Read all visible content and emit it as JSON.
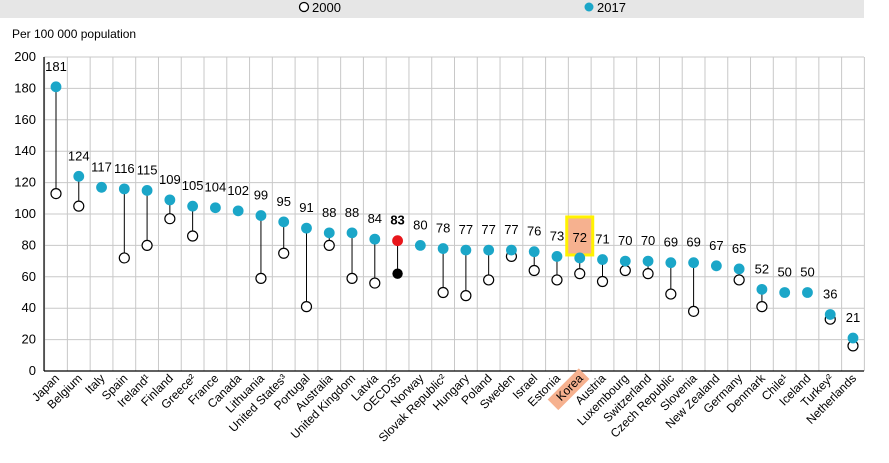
{
  "legend": {
    "label_2000": "2000",
    "label_2017": "2017"
  },
  "colors": {
    "series_2017": "#1ba6c8",
    "series_2000_fill": "#ffffff",
    "series_2000_stroke": "#000000",
    "oecd_2017": "#e8161b",
    "oecd_2000": "#000000",
    "highlight_box": "#fff200",
    "highlight_fill": "#f6b18f",
    "grid": "#c8c8c8",
    "connector": "#000000"
  },
  "chart_data": {
    "type": "scatter",
    "subtype": "dot-plot",
    "ylabel": "Per 100 000 population",
    "ylim": [
      0,
      200
    ],
    "yticks": [
      0,
      20,
      40,
      60,
      80,
      100,
      120,
      140,
      160,
      180,
      200
    ],
    "grid": true,
    "legend_position": "top",
    "highlight_category": "Korea",
    "average_category": "OECD35",
    "categories": [
      "Japan",
      "Belgium",
      "Italy",
      "Spain",
      "Ireland¹",
      "Finland",
      "Greece²",
      "France",
      "Canada",
      "Lithuania",
      "United States³",
      "Portugal",
      "Australia",
      "United Kingdom",
      "Latvia",
      "OECD35",
      "Norway",
      "Slovak Republic²",
      "Hungary",
      "Poland",
      "Sweden",
      "Israel",
      "Estonia",
      "Korea",
      "Austria",
      "Luxembourg",
      "Switzerland",
      "Czech Republic",
      "Slovenia",
      "New Zealand",
      "Germany",
      "Denmark",
      "Chile¹",
      "Iceland",
      "Turkey²",
      "Netherlands"
    ],
    "series": [
      {
        "name": "2017",
        "values": [
          181,
          124,
          117,
          116,
          115,
          109,
          105,
          104,
          102,
          99,
          95,
          91,
          88,
          88,
          84,
          83,
          80,
          78,
          77,
          77,
          77,
          76,
          73,
          72,
          71,
          70,
          70,
          69,
          69,
          67,
          65,
          52,
          50,
          50,
          36,
          21
        ]
      },
      {
        "name": "2000",
        "values": [
          113,
          105,
          null,
          72,
          80,
          97,
          86,
          null,
          null,
          59,
          75,
          41,
          80,
          59,
          56,
          62,
          null,
          50,
          48,
          58,
          73,
          64,
          58,
          62,
          57,
          64,
          62,
          49,
          38,
          null,
          58,
          41,
          null,
          null,
          33,
          16
        ]
      }
    ],
    "data_labels": [
      "181",
      "124",
      "117",
      "116",
      "115",
      "109",
      "105",
      "104",
      "102",
      "99",
      "95",
      "91",
      "88",
      "88",
      "84",
      "83",
      "80",
      "78",
      "77",
      "77",
      "77",
      "76",
      "73",
      "72",
      "71",
      "70",
      "70",
      "69",
      "69",
      "67",
      "65",
      "52",
      "50",
      "50",
      "36",
      "21"
    ]
  }
}
